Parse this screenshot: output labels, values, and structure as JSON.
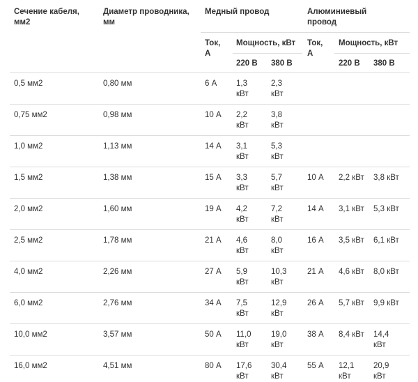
{
  "headers": {
    "section": "Сечение кабеля,\nмм2",
    "diameter": "Диаметр проводника,\nмм",
    "copper": "Медный провод",
    "aluminum": "Алюминиевый\nпровод",
    "cu_current": "Ток,\nА",
    "cu_power": "Мощность, кВт",
    "cu_220": "220 В",
    "cu_380": "380 В",
    "al_current": "Ток,\nА",
    "al_power": "Мощность, кВт",
    "al_220": "220 В",
    "al_380": "380 В"
  },
  "rows": [
    {
      "section": "0,5 мм2",
      "diameter": "0,80 мм",
      "cu_current": "6 А",
      "cu_220": "1,3\nкВт",
      "cu_380": "2,3\nкВт",
      "al_current": "",
      "al_220": "",
      "al_380": ""
    },
    {
      "section": "0,75 мм2",
      "diameter": "0,98 мм",
      "cu_current": "10 А",
      "cu_220": "2,2\nкВт",
      "cu_380": "3,8\nкВт",
      "al_current": "",
      "al_220": "",
      "al_380": ""
    },
    {
      "section": "1,0 мм2",
      "diameter": "1,13 мм",
      "cu_current": "14 А",
      "cu_220": "3,1\nкВт",
      "cu_380": "5,3\nкВт",
      "al_current": "",
      "al_220": "",
      "al_380": ""
    },
    {
      "section": "1,5 мм2",
      "diameter": "1,38 мм",
      "cu_current": "15 А",
      "cu_220": "3,3\nкВт",
      "cu_380": "5,7\nкВт",
      "al_current": "10 А",
      "al_220": "2,2 кВт",
      "al_380": "3,8 кВт"
    },
    {
      "section": "2,0 мм2",
      "diameter": "1,60 мм",
      "cu_current": "19 А",
      "cu_220": "4,2\nкВт",
      "cu_380": "7,2\nкВт",
      "al_current": "14 А",
      "al_220": "3,1 кВт",
      "al_380": "5,3 кВт"
    },
    {
      "section": "2,5 мм2",
      "diameter": "1,78 мм",
      "cu_current": "21 А",
      "cu_220": "4,6\nкВт",
      "cu_380": "8,0\nкВт",
      "al_current": "16 А",
      "al_220": "3,5 кВт",
      "al_380": "6,1 кВт"
    },
    {
      "section": "4,0 мм2",
      "diameter": "2,26 мм",
      "cu_current": "27 А",
      "cu_220": "5,9\nкВт",
      "cu_380": "10,3\nкВт",
      "al_current": "21 А",
      "al_220": "4,6 кВт",
      "al_380": "8,0 кВт"
    },
    {
      "section": "6,0 мм2",
      "diameter": "2,76 мм",
      "cu_current": "34 А",
      "cu_220": "7,5\nкВт",
      "cu_380": "12,9\nкВт",
      "al_current": "26 А",
      "al_220": "5,7 кВт",
      "al_380": "9,9 кВт"
    },
    {
      "section": "10,0 мм2",
      "diameter": "3,57 мм",
      "cu_current": "50 А",
      "cu_220": "11,0\nкВт",
      "cu_380": "19,0\nкВт",
      "al_current": "38 А",
      "al_220": "8,4 кВт",
      "al_380": "14,4\nкВт"
    },
    {
      "section": "16,0 мм2",
      "diameter": "4,51 мм",
      "cu_current": "80 А",
      "cu_220": "17,6\nкВт",
      "cu_380": "30,4\nкВт",
      "al_current": "55 А",
      "al_220": "12,1\nкВт",
      "al_380": "20,9\nкВт"
    }
  ]
}
